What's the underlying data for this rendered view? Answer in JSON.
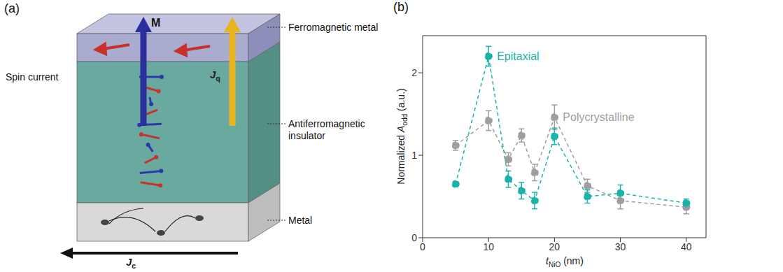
{
  "panel_labels": [
    "(a)",
    "(b)"
  ],
  "diagram": {
    "layers": {
      "top": "Ferromagnetic metal",
      "middle": "Antiferromagnetic insulator",
      "bottom": "Metal"
    },
    "magnetization": "M",
    "spin_current": "Spin current",
    "heat_current": {
      "main": "J",
      "sub": "q"
    },
    "charge_current": {
      "main": "J",
      "sub": "c"
    }
  },
  "chart_data": {
    "type": "line",
    "x": [
      5,
      10,
      13,
      15,
      17,
      20,
      25,
      30,
      40
    ],
    "xlim": [
      0,
      43
    ],
    "xticks": [
      0,
      10,
      20,
      30,
      40
    ],
    "ylim": [
      0,
      2.45
    ],
    "yticks": [
      0,
      1,
      2
    ],
    "xlabel": {
      "main": "t",
      "sub": "NiO",
      "after": " (nm)"
    },
    "ylabel": {
      "before": "Normalized ",
      "main": "A",
      "sub": "odd",
      "after": " (a.u.)"
    },
    "marker": "circle",
    "line_style": "dashed",
    "grid": false,
    "series": [
      {
        "name": "Epitaxial",
        "color": "#1ab3aa",
        "values": [
          0.65,
          2.2,
          0.71,
          0.57,
          0.45,
          1.23,
          0.5,
          0.54,
          0.42
        ],
        "errors": [
          0.03,
          0.12,
          0.1,
          0.1,
          0.1,
          0.1,
          0.08,
          0.1,
          0.05
        ]
      },
      {
        "name": "Polycrystalline",
        "color": "#9e9e9e",
        "values": [
          1.12,
          1.42,
          0.95,
          1.24,
          0.79,
          1.46,
          0.63,
          0.45,
          0.37
        ],
        "errors": [
          0.06,
          0.12,
          0.08,
          0.08,
          0.1,
          0.15,
          0.08,
          0.1,
          0.08
        ]
      }
    ]
  }
}
